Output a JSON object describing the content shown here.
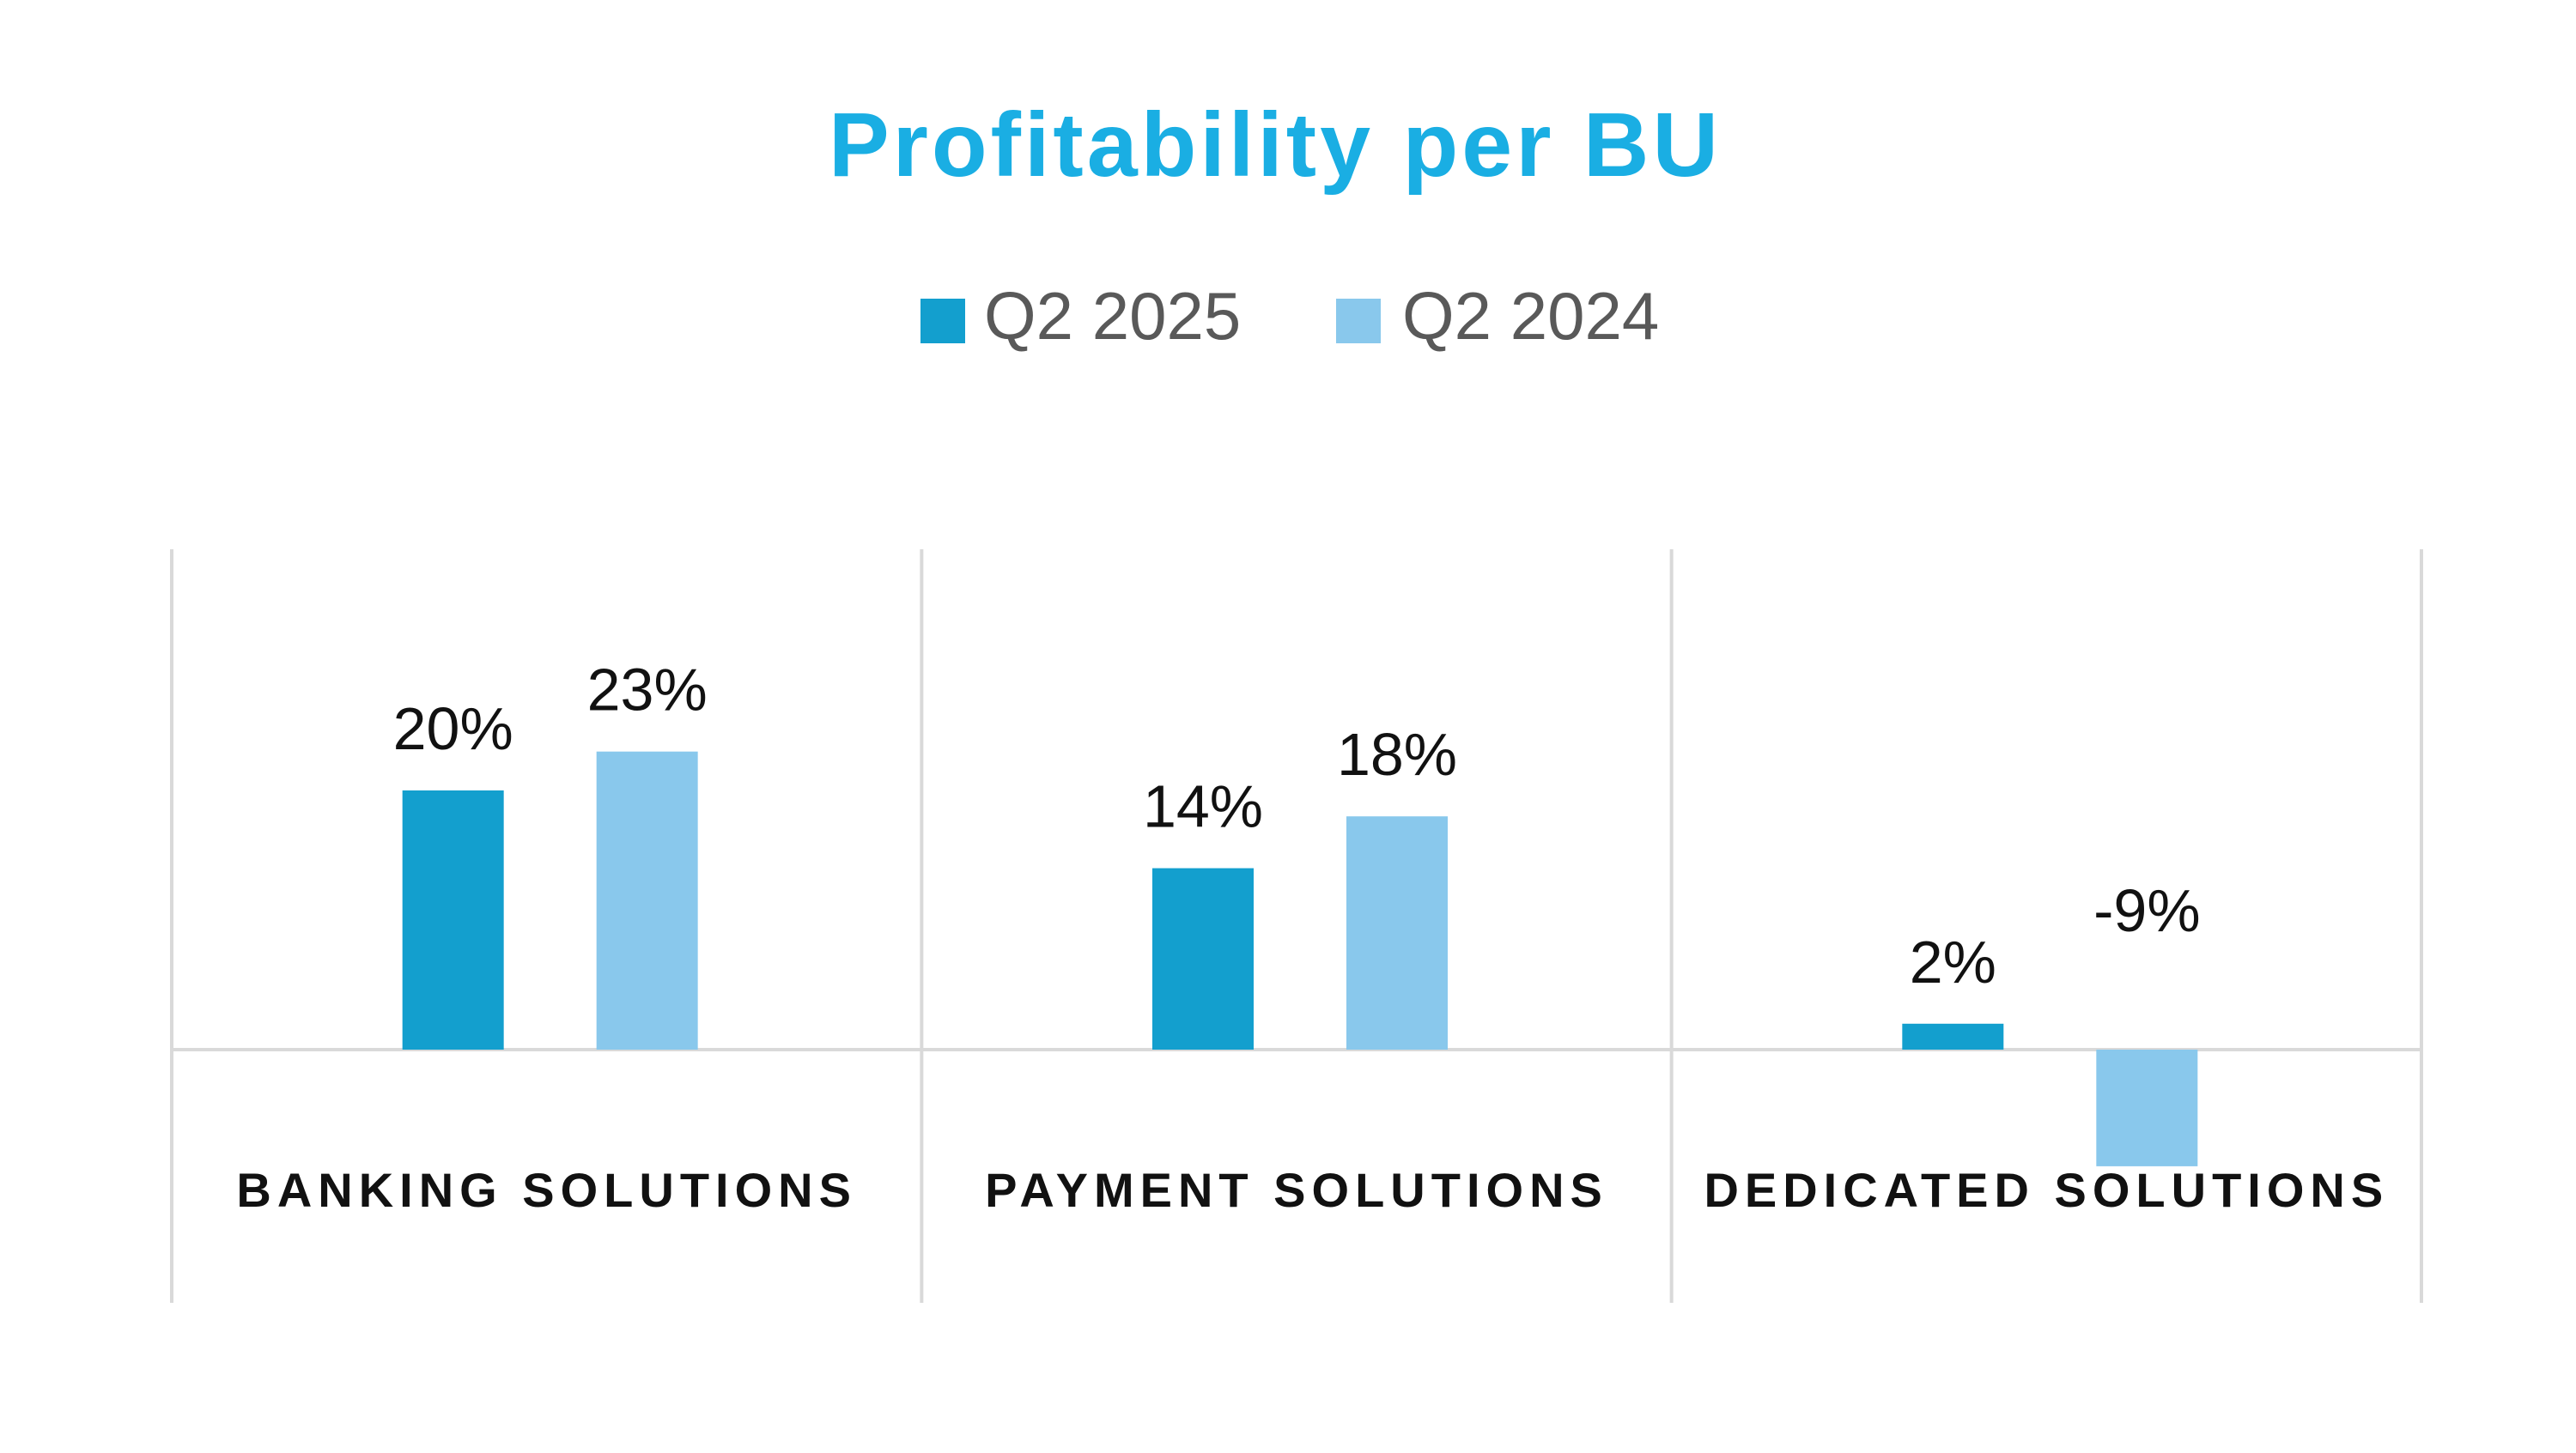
{
  "colors": {
    "title": "#1aaee3",
    "series_1": "#139fce",
    "series_2": "#89c8ec",
    "gridline": "#d9d9d9",
    "legend_text": "#595959",
    "data_label": "#111111",
    "category_label": "#111111"
  },
  "chart_data": {
    "type": "bar",
    "title": "Profitability per BU",
    "categories": [
      "BANKING SOLUTIONS",
      "PAYMENT SOLUTIONS",
      "DEDICATED SOLUTIONS"
    ],
    "series": [
      {
        "name": "Q2 2025",
        "values": [
          20,
          14,
          2
        ],
        "data_labels": [
          "20%",
          "14%",
          "2%"
        ]
      },
      {
        "name": "Q2 2024",
        "values": [
          23,
          18,
          -9
        ],
        "data_labels": [
          "23%",
          "18%",
          "-9%"
        ]
      }
    ],
    "unit": "%",
    "legend_position": "top",
    "gridlines": "vertical category separators",
    "y_axis_visible": false
  }
}
